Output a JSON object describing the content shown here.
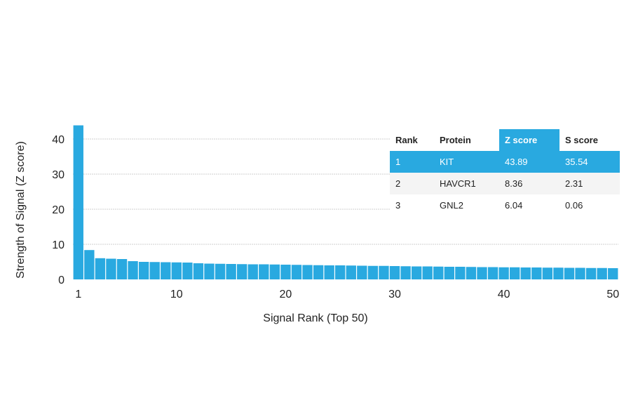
{
  "chart_data": {
    "type": "bar",
    "xlabel": "Signal Rank (Top 50)",
    "ylabel": "Strength of Signal (Z score)",
    "xticks": [
      1,
      10,
      20,
      30,
      40,
      50
    ],
    "yticks": [
      0,
      10,
      20,
      30,
      40
    ],
    "ylim": [
      0,
      44
    ],
    "xlim": [
      1,
      50
    ],
    "grid": true,
    "bar_color": "#29a9e0",
    "x": [
      1,
      2,
      3,
      4,
      5,
      6,
      7,
      8,
      9,
      10,
      11,
      12,
      13,
      14,
      15,
      16,
      17,
      18,
      19,
      20,
      21,
      22,
      23,
      24,
      25,
      26,
      27,
      28,
      29,
      30,
      31,
      32,
      33,
      34,
      35,
      36,
      37,
      38,
      39,
      40,
      41,
      42,
      43,
      44,
      45,
      46,
      47,
      48,
      49,
      50
    ],
    "values": [
      43.89,
      8.36,
      6.04,
      5.9,
      5.8,
      5.2,
      5.0,
      4.95,
      4.9,
      4.85,
      4.8,
      4.6,
      4.5,
      4.45,
      4.4,
      4.35,
      4.3,
      4.3,
      4.25,
      4.2,
      4.15,
      4.1,
      4.05,
      4.0,
      4.0,
      3.95,
      3.9,
      3.85,
      3.85,
      3.8,
      3.75,
      3.7,
      3.7,
      3.65,
      3.6,
      3.6,
      3.55,
      3.5,
      3.5,
      3.45,
      3.45,
      3.4,
      3.4,
      3.35,
      3.35,
      3.3,
      3.3,
      3.25,
      3.25,
      3.2
    ]
  },
  "table": {
    "headers": [
      "Rank",
      "Protein",
      "Z score",
      "S score"
    ],
    "highlight_color": "#29a9e0",
    "rows": [
      [
        "1",
        "KIT",
        "43.89",
        "35.54"
      ],
      [
        "2",
        "HAVCR1",
        "8.36",
        "2.31"
      ],
      [
        "3",
        "GNL2",
        "6.04",
        "0.06"
      ]
    ]
  }
}
